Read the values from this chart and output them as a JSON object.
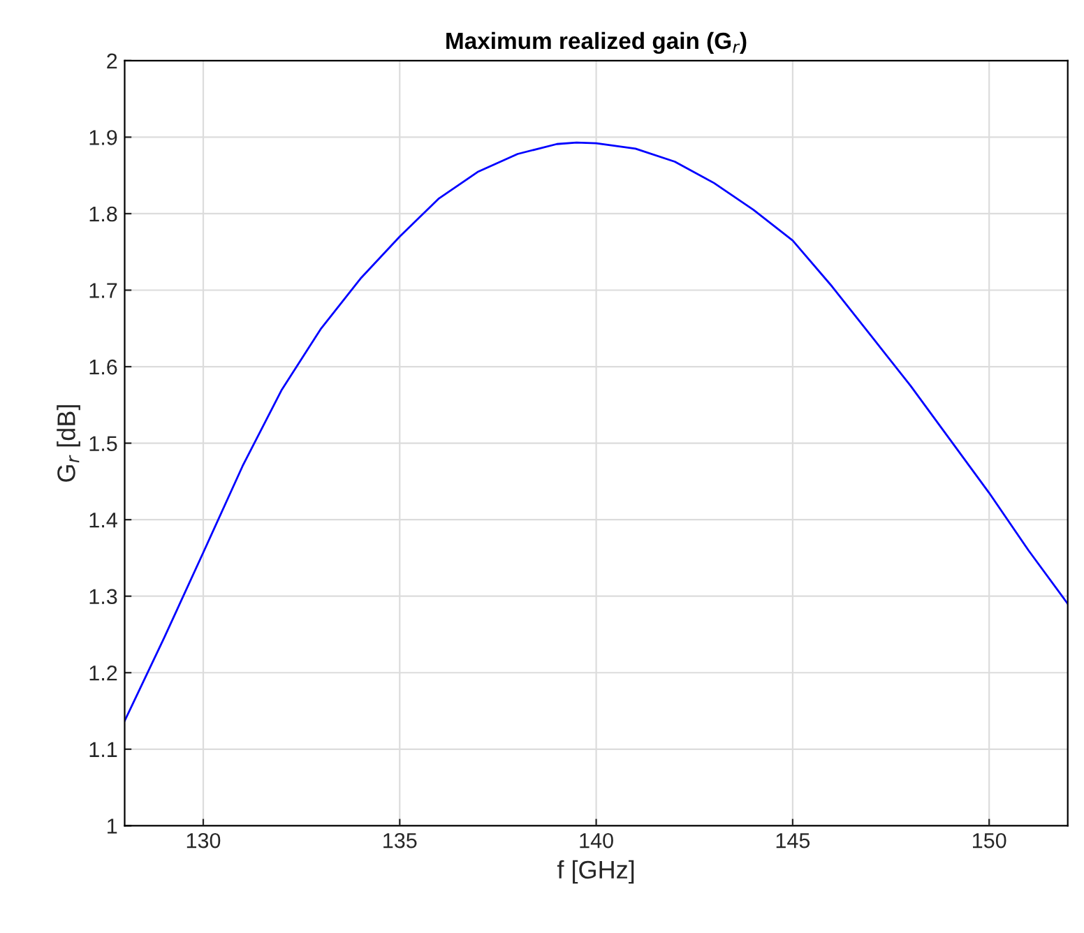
{
  "chart_data": {
    "type": "line",
    "title": "Maximum realized gain (G$_{r}$)",
    "xlabel": "f [GHz]",
    "ylabel": "G$_{r}$ [dB]",
    "x": [
      128,
      129,
      130,
      131,
      132,
      133,
      134,
      135,
      136,
      137,
      138,
      139,
      139.5,
      140,
      141,
      142,
      143,
      144,
      145,
      146,
      147,
      148,
      149,
      150,
      151,
      152
    ],
    "series": [
      {
        "color": "#0000ff",
        "values": [
          1.137,
          1.245,
          1.357,
          1.47,
          1.57,
          1.65,
          1.715,
          1.77,
          1.82,
          1.855,
          1.878,
          1.891,
          1.893,
          1.892,
          1.885,
          1.868,
          1.84,
          1.805,
          1.765,
          1.705,
          1.64,
          1.575,
          1.505,
          1.435,
          1.36,
          1.29
        ]
      }
    ],
    "xlim": [
      128,
      152
    ],
    "ylim": [
      1,
      2
    ],
    "xticks": [
      130,
      135,
      140,
      145,
      150
    ],
    "yticks": [
      1,
      1.1,
      1.2,
      1.3,
      1.4,
      1.5,
      1.6,
      1.7,
      1.8,
      1.9,
      2
    ],
    "grid": true,
    "legend": false
  }
}
